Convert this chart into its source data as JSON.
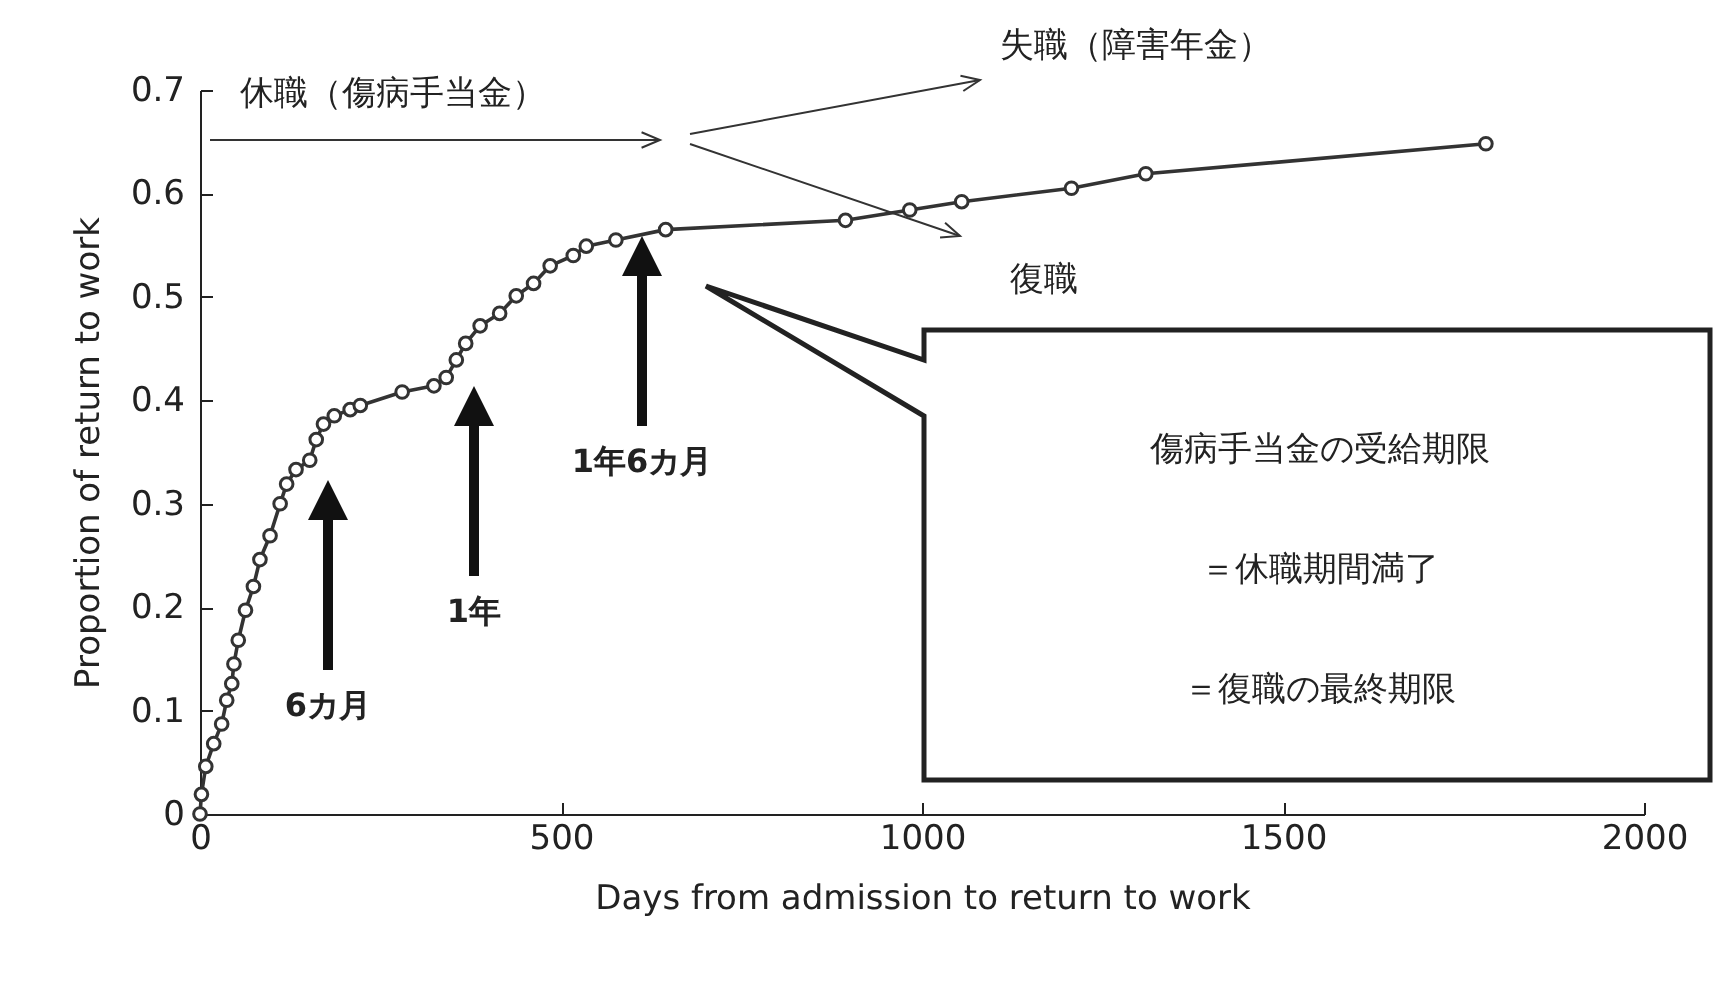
{
  "chart_data": {
    "type": "line",
    "xlabel": "Days from admission to return to work",
    "ylabel": "Proportion of return to work",
    "x": [
      0,
      2,
      8,
      19,
      30,
      37,
      44,
      47,
      53,
      63,
      74,
      83,
      97,
      111,
      120,
      133,
      152,
      161,
      171,
      186,
      208,
      222,
      280,
      324,
      341,
      355,
      368,
      388,
      415,
      438,
      462,
      485,
      517,
      535,
      576,
      645,
      894,
      983,
      1055,
      1207,
      1310,
      1781
    ],
    "series": [
      {
        "color": "#333333",
        "values": [
          0,
          0.019,
          0.046,
          0.068,
          0.087,
          0.11,
          0.126,
          0.145,
          0.168,
          0.197,
          0.22,
          0.246,
          0.269,
          0.3,
          0.319,
          0.333,
          0.342,
          0.362,
          0.377,
          0.385,
          0.391,
          0.395,
          0.408,
          0.414,
          0.422,
          0.439,
          0.455,
          0.472,
          0.484,
          0.501,
          0.513,
          0.53,
          0.54,
          0.549,
          0.555,
          0.565,
          0.574,
          0.584,
          0.592,
          0.605,
          0.619,
          0.648
        ]
      }
    ],
    "xlim": [
      0,
      2000
    ],
    "xticks": [
      0,
      500,
      1000,
      1500,
      2000
    ],
    "ylim": [
      0,
      0.7
    ],
    "yticks": [
      0,
      0.1,
      0.2,
      0.3,
      0.4,
      0.5,
      0.6,
      0.7
    ],
    "marker": "circle",
    "line_style": "solid",
    "grid": false,
    "annotations": [
      "休職（傷病手当金）",
      "失職（障害年金）",
      "復職",
      "6カ月",
      "1年",
      "1年6カ月",
      "傷病手当金の受給期限",
      "＝休職期間満了",
      "＝復職の最終期限"
    ]
  }
}
